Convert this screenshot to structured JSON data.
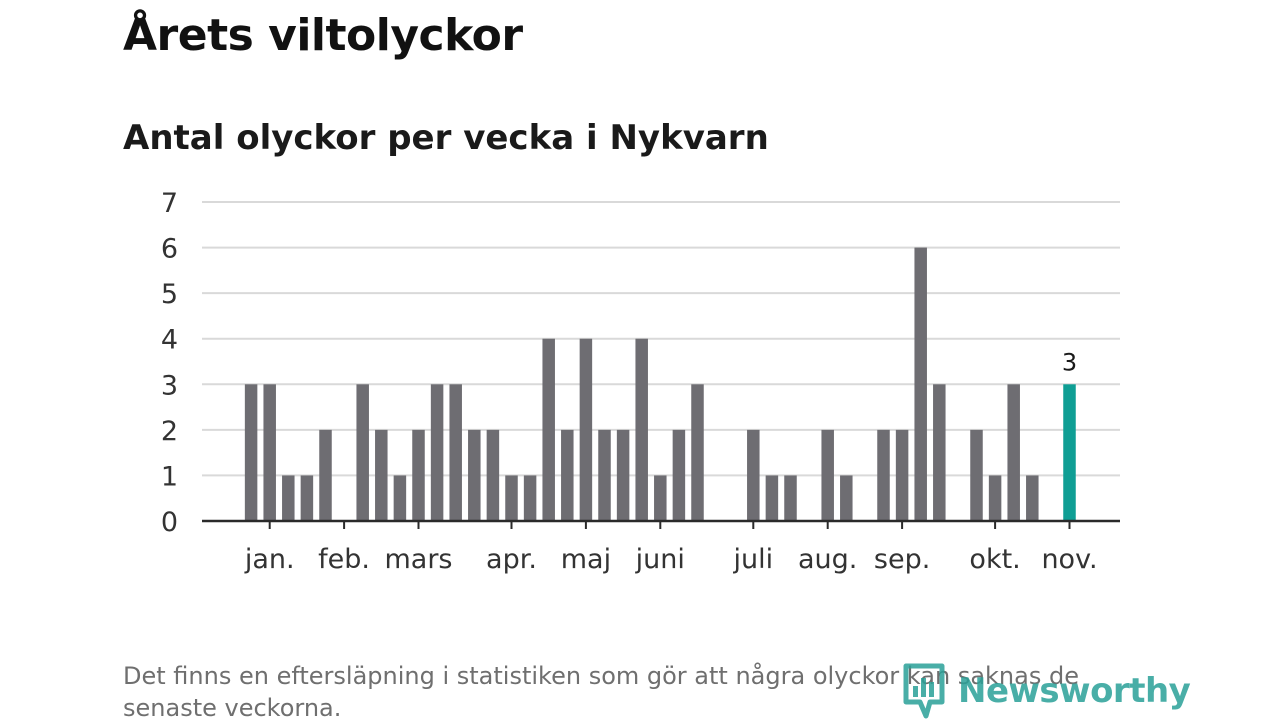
{
  "title": "Årets viltolyckor",
  "subtitle": "Antal olyckor per vecka i Nykvarn",
  "footnote": "Det finns en eftersläpning i statistiken som gör att några olyckor kan saknas de senaste veckorna.",
  "logo_text": "Newsworthy",
  "colors": {
    "bar": "#6e6d72",
    "highlight": "#0f9e94",
    "grid": "#d9d9d9",
    "axis": "#2a2a2a",
    "logo": "#2aa198"
  },
  "chart_data": {
    "type": "bar",
    "title": "Antal olyckor per vecka i Nykvarn",
    "xlabel": "",
    "ylabel": "",
    "ylim": [
      0,
      7
    ],
    "yticks": [
      0,
      1,
      2,
      3,
      4,
      5,
      6,
      7
    ],
    "grid": true,
    "weeks": [
      1,
      2,
      3,
      4,
      5,
      6,
      7,
      8,
      9,
      10,
      11,
      12,
      13,
      14,
      15,
      16,
      17,
      18,
      19,
      20,
      21,
      22,
      23,
      24,
      25,
      26,
      27,
      28,
      29,
      30,
      31,
      32,
      33,
      34,
      35,
      36,
      37,
      38,
      39,
      40,
      41,
      42,
      43,
      44,
      45,
      46
    ],
    "values": [
      0,
      3,
      3,
      1,
      1,
      2,
      0,
      3,
      2,
      1,
      2,
      3,
      3,
      2,
      2,
      1,
      1,
      4,
      2,
      4,
      2,
      2,
      4,
      1,
      2,
      3,
      0,
      0,
      2,
      1,
      1,
      0,
      2,
      1,
      0,
      2,
      2,
      6,
      3,
      0,
      2,
      1,
      3,
      1,
      0,
      3
    ],
    "highlight_index": 45,
    "data_labels": [
      {
        "index": 45,
        "text": "3"
      }
    ],
    "month_labels": [
      {
        "label": "jan.",
        "week": 3
      },
      {
        "label": "feb.",
        "week": 7
      },
      {
        "label": "mars",
        "week": 11
      },
      {
        "label": "apr.",
        "week": 16
      },
      {
        "label": "maj",
        "week": 20
      },
      {
        "label": "juni",
        "week": 24
      },
      {
        "label": "juli",
        "week": 29
      },
      {
        "label": "aug.",
        "week": 33
      },
      {
        "label": "sep.",
        "week": 37
      },
      {
        "label": "okt.",
        "week": 42
      },
      {
        "label": "nov.",
        "week": 46
      }
    ]
  }
}
